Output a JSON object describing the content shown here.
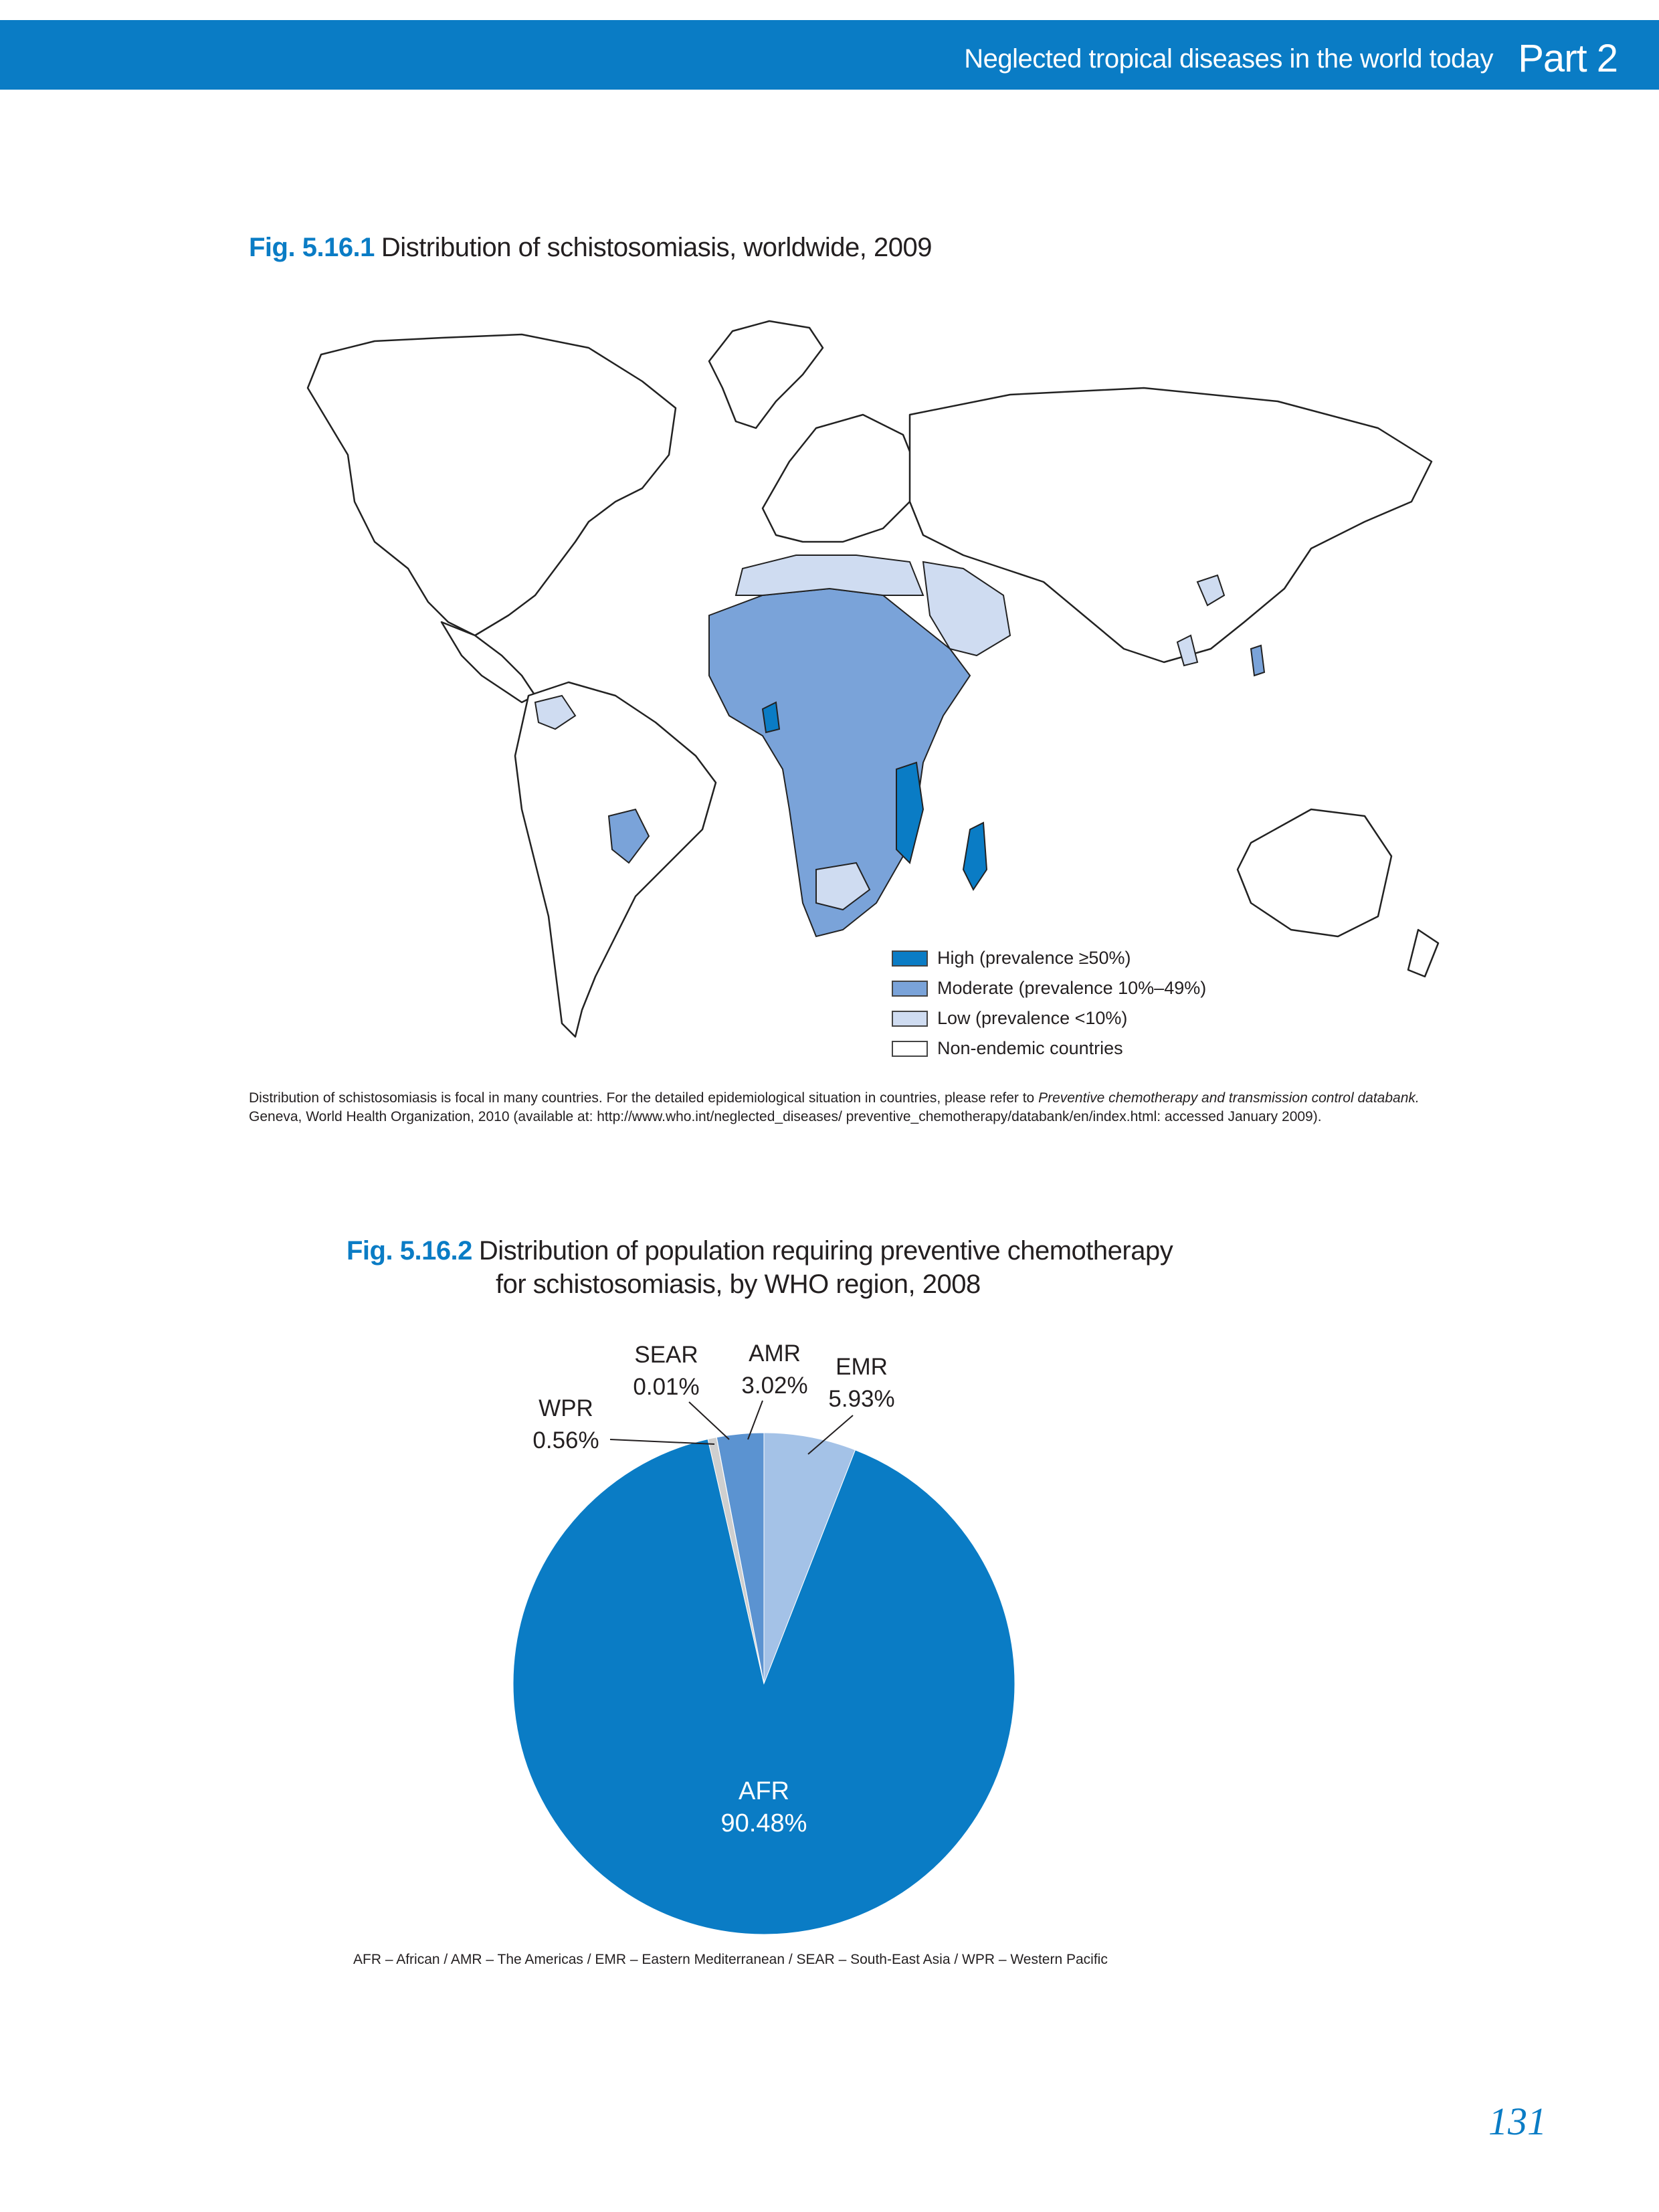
{
  "header": {
    "subtitle": "Neglected tropical diseases in the world today",
    "part": "Part 2",
    "band_color": "#0a7cc5"
  },
  "fig1": {
    "number": "Fig. 5.16.1",
    "title": "Distribution of schistosomiasis, worldwide, 2009",
    "legend": [
      {
        "label": "High (prevalence ≥50%)",
        "color": "#0a7cc5"
      },
      {
        "label": "Moderate (prevalence 10%–49%)",
        "color": "#7aa3d9"
      },
      {
        "label": "Low (prevalence <10%)",
        "color": "#cfdcf1"
      },
      {
        "label": "Non-endemic countries",
        "color": "#ffffff"
      }
    ],
    "note_part1": "Distribution of schistosomiasis is focal in many countries. For the detailed epidemiological situation in countries, please refer to ",
    "note_italic": "Preventive chemotherapy and transmission control databank.",
    "note_part2": "Geneva, World Health Organization, 2010 (available at: http://www.who.int/neglected_diseases/ preventive_chemotherapy/databank/en/index.html: accessed January 2009)."
  },
  "fig2": {
    "number": "Fig. 5.16.2",
    "title_line1": "Distribution of population requiring preventive chemotherapy",
    "title_line2": "for schistosomiasis, by WHO region, 2008",
    "note": "AFR – African / AMR – The Americas / EMR – Eastern Mediterranean / SEAR – South-East Asia / WPR – Western Pacific"
  },
  "chart_data": {
    "type": "pie",
    "slices": [
      {
        "label": "AFR",
        "value": 90.48,
        "display": "90.48%",
        "color": "#0a7cc5"
      },
      {
        "label": "WPR",
        "value": 0.56,
        "display": "0.56%",
        "color": "#cfcfcf"
      },
      {
        "label": "SEAR",
        "value": 0.01,
        "display": "0.01%",
        "color": "#7fa8d8"
      },
      {
        "label": "AMR",
        "value": 3.02,
        "display": "3.02%",
        "color": "#5b93d1"
      },
      {
        "label": "EMR",
        "value": 5.93,
        "display": "5.93%",
        "color": "#a4c2e7"
      }
    ]
  },
  "page_number": "131"
}
